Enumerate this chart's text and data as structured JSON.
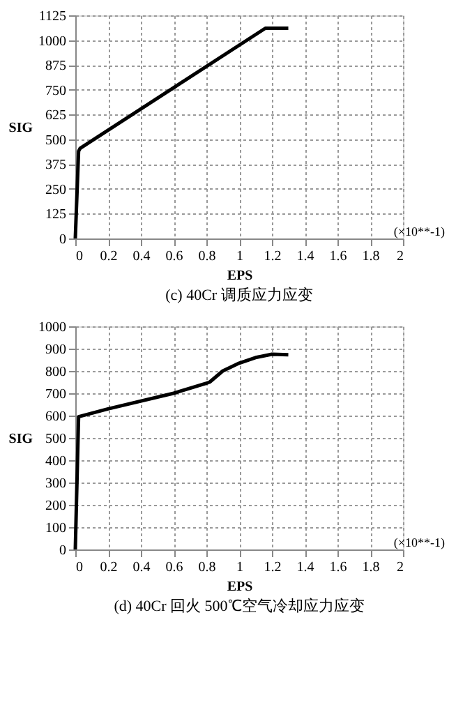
{
  "chart_data": [
    {
      "type": "line",
      "title": "(c) 40Cr 调质应力应变",
      "xlabel": "EPS",
      "ylabel": "SIG",
      "annotations": [
        "(×10**-1)"
      ],
      "xlim": [
        0,
        2
      ],
      "xticks": [
        0,
        0.2,
        0.4,
        0.6,
        0.8,
        1,
        1.2,
        1.4,
        1.6,
        1.8,
        2
      ],
      "ylim": [
        0,
        1125
      ],
      "yticks": [
        0,
        125,
        250,
        375,
        500,
        625,
        750,
        875,
        1000,
        1125
      ],
      "grid": true,
      "series": [
        {
          "color": "#000000",
          "x": [
            0,
            0.02,
            0.03,
            1.16,
            1.3
          ],
          "values": [
            0,
            440,
            455,
            1060,
            1060
          ]
        }
      ]
    },
    {
      "type": "line",
      "title": "(d) 40Cr 回火 500℃空气冷却应力应变",
      "xlabel": "EPS",
      "ylabel": "SIG",
      "annotations": [
        "(×10**-1)"
      ],
      "xlim": [
        0,
        2
      ],
      "xticks": [
        0,
        0.2,
        0.4,
        0.6,
        0.8,
        1,
        1.2,
        1.4,
        1.6,
        1.8,
        2
      ],
      "ylim": [
        0,
        1000
      ],
      "yticks": [
        0,
        100,
        200,
        300,
        400,
        500,
        600,
        700,
        800,
        900,
        1000
      ],
      "grid": true,
      "series": [
        {
          "color": "#000000",
          "x": [
            0,
            0.02,
            0.2,
            0.6,
            0.8,
            0.82,
            0.9,
            1.0,
            1.1,
            1.2,
            1.3
          ],
          "values": [
            0,
            595,
            630,
            700,
            745,
            750,
            800,
            835,
            860,
            875,
            873
          ]
        }
      ]
    }
  ]
}
